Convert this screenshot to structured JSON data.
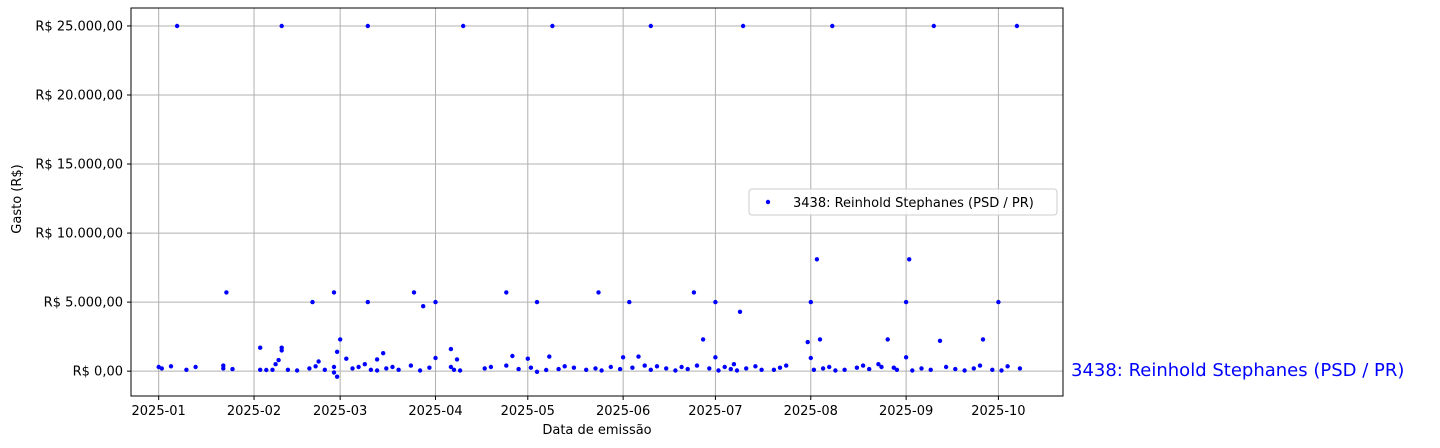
{
  "chart_data": {
    "type": "scatter",
    "title": "",
    "xlabel": "Data de emissão",
    "ylabel": "Gasto (R$)",
    "x_ticks": [
      "2025-01",
      "2025-02",
      "2025-03",
      "2025-04",
      "2025-05",
      "2025-06",
      "2025-07",
      "2025-08",
      "2025-09",
      "2025-10"
    ],
    "x_tick_dates": [
      "2025-01-01",
      "2025-02-01",
      "2025-03-01",
      "2025-04-01",
      "2025-05-01",
      "2025-06-01",
      "2025-07-01",
      "2025-08-01",
      "2025-09-01",
      "2025-10-01"
    ],
    "xlim": [
      "2024-12-23",
      "2025-10-22"
    ],
    "y_ticks": [
      "R$ 0,00",
      "R$ 5.000,00",
      "R$ 10.000,00",
      "R$ 15.000,00",
      "R$ 20.000,00",
      "R$ 25.000,00"
    ],
    "y_tick_values": [
      0,
      5000,
      10000,
      15000,
      20000,
      25000
    ],
    "ylim": [
      -1800,
      26300
    ],
    "grid": true,
    "legend_position": "center-right",
    "annotation": "3438: Reinhold Stephanes (PSD / PR)",
    "colors": {
      "series": "#0000ff",
      "annotation": "#0000ff",
      "grid": "#b0b0b0"
    },
    "series": [
      {
        "name": "3438: Reinhold Stephanes (PSD / PR)",
        "points": [
          [
            "2025-01-07",
            25000
          ],
          [
            "2025-02-10",
            25000
          ],
          [
            "2025-03-10",
            25000
          ],
          [
            "2025-04-10",
            25000
          ],
          [
            "2025-05-09",
            25000
          ],
          [
            "2025-06-10",
            25000
          ],
          [
            "2025-07-10",
            25000
          ],
          [
            "2025-08-08",
            25000
          ],
          [
            "2025-09-10",
            25000
          ],
          [
            "2025-10-07",
            25000
          ],
          [
            "2025-01-23",
            5700
          ],
          [
            "2025-02-27",
            5700
          ],
          [
            "2025-03-25",
            5700
          ],
          [
            "2025-04-24",
            5700
          ],
          [
            "2025-05-24",
            5700
          ],
          [
            "2025-06-24",
            5700
          ],
          [
            "2025-02-20",
            5000
          ],
          [
            "2025-03-10",
            5000
          ],
          [
            "2025-04-01",
            5000
          ],
          [
            "2025-05-04",
            5000
          ],
          [
            "2025-06-03",
            5000
          ],
          [
            "2025-07-01",
            5000
          ],
          [
            "2025-08-01",
            5000
          ],
          [
            "2025-09-01",
            5000
          ],
          [
            "2025-10-01",
            5000
          ],
          [
            "2025-03-28",
            4700
          ],
          [
            "2025-07-09",
            4300
          ],
          [
            "2025-08-03",
            8100
          ],
          [
            "2025-09-02",
            8100
          ],
          [
            "2025-08-04",
            2300
          ],
          [
            "2025-08-26",
            2300
          ],
          [
            "2025-09-12",
            2200
          ],
          [
            "2025-09-26",
            2300
          ],
          [
            "2025-06-27",
            2300
          ],
          [
            "2025-03-01",
            2300
          ],
          [
            "2025-07-31",
            2100
          ],
          [
            "2025-02-03",
            1700
          ],
          [
            "2025-02-10",
            1700
          ],
          [
            "2025-02-10",
            1500
          ],
          [
            "2025-02-28",
            1400
          ],
          [
            "2025-03-15",
            1300
          ],
          [
            "2025-04-06",
            1600
          ],
          [
            "2025-04-26",
            1100
          ],
          [
            "2025-06-06",
            1050
          ],
          [
            "2025-05-08",
            1050
          ],
          [
            "2025-07-01",
            1000
          ],
          [
            "2025-08-01",
            950
          ],
          [
            "2025-09-01",
            1000
          ],
          [
            "2025-06-01",
            1000
          ],
          [
            "2025-04-01",
            950
          ],
          [
            "2025-05-01",
            900
          ],
          [
            "2025-03-03",
            900
          ],
          [
            "2025-02-09",
            800
          ],
          [
            "2025-02-22",
            700
          ],
          [
            "2025-03-13",
            850
          ],
          [
            "2025-04-08",
            850
          ],
          [
            "2025-07-07",
            500
          ],
          [
            "2025-08-18",
            400
          ],
          [
            "2025-08-23",
            500
          ],
          [
            "2025-01-01",
            300
          ],
          [
            "2025-01-02",
            200
          ],
          [
            "2025-01-05",
            350
          ],
          [
            "2025-01-13",
            300
          ],
          [
            "2025-01-22",
            400
          ],
          [
            "2025-01-22",
            200
          ],
          [
            "2025-01-25",
            150
          ],
          [
            "2025-02-03",
            100
          ],
          [
            "2025-02-05",
            80
          ],
          [
            "2025-02-07",
            100
          ],
          [
            "2025-02-08",
            500
          ],
          [
            "2025-02-12",
            100
          ],
          [
            "2025-02-15",
            50
          ],
          [
            "2025-02-19",
            200
          ],
          [
            "2025-02-21",
            350
          ],
          [
            "2025-02-24",
            100
          ],
          [
            "2025-02-27",
            300
          ],
          [
            "2025-02-27",
            -100
          ],
          [
            "2025-02-28",
            -400
          ],
          [
            "2025-03-05",
            200
          ],
          [
            "2025-03-07",
            300
          ],
          [
            "2025-03-09",
            500
          ],
          [
            "2025-03-11",
            100
          ],
          [
            "2025-03-13",
            50
          ],
          [
            "2025-03-16",
            200
          ],
          [
            "2025-03-18",
            300
          ],
          [
            "2025-03-20",
            100
          ],
          [
            "2025-03-24",
            400
          ],
          [
            "2025-03-27",
            50
          ],
          [
            "2025-03-30",
            250
          ],
          [
            "2025-04-06",
            300
          ],
          [
            "2025-04-07",
            100
          ],
          [
            "2025-04-09",
            50
          ],
          [
            "2025-04-17",
            200
          ],
          [
            "2025-04-19",
            300
          ],
          [
            "2025-04-24",
            400
          ],
          [
            "2025-04-28",
            150
          ],
          [
            "2025-05-02",
            250
          ],
          [
            "2025-05-04",
            -50
          ],
          [
            "2025-05-07",
            80
          ],
          [
            "2025-05-11",
            150
          ],
          [
            "2025-05-13",
            350
          ],
          [
            "2025-05-16",
            250
          ],
          [
            "2025-05-20",
            100
          ],
          [
            "2025-05-23",
            200
          ],
          [
            "2025-05-25",
            50
          ],
          [
            "2025-05-28",
            300
          ],
          [
            "2025-05-31",
            150
          ],
          [
            "2025-06-04",
            250
          ],
          [
            "2025-06-08",
            400
          ],
          [
            "2025-06-10",
            100
          ],
          [
            "2025-06-12",
            350
          ],
          [
            "2025-06-15",
            200
          ],
          [
            "2025-06-18",
            50
          ],
          [
            "2025-06-20",
            300
          ],
          [
            "2025-06-22",
            150
          ],
          [
            "2025-06-25",
            400
          ],
          [
            "2025-06-29",
            200
          ],
          [
            "2025-07-02",
            50
          ],
          [
            "2025-07-04",
            300
          ],
          [
            "2025-07-06",
            150
          ],
          [
            "2025-07-08",
            50
          ],
          [
            "2025-07-11",
            200
          ],
          [
            "2025-07-14",
            350
          ],
          [
            "2025-07-16",
            100
          ],
          [
            "2025-07-22",
            250
          ],
          [
            "2025-07-24",
            400
          ],
          [
            "2025-08-02",
            100
          ],
          [
            "2025-08-05",
            200
          ],
          [
            "2025-08-07",
            300
          ],
          [
            "2025-08-09",
            50
          ],
          [
            "2025-08-12",
            100
          ],
          [
            "2025-08-16",
            250
          ],
          [
            "2025-08-20",
            150
          ],
          [
            "2025-08-24",
            300
          ],
          [
            "2025-08-29",
            100
          ],
          [
            "2025-09-03",
            50
          ],
          [
            "2025-09-06",
            200
          ],
          [
            "2025-09-09",
            100
          ],
          [
            "2025-09-14",
            300
          ],
          [
            "2025-09-17",
            150
          ],
          [
            "2025-09-20",
            50
          ],
          [
            "2025-09-23",
            200
          ],
          [
            "2025-09-29",
            100
          ],
          [
            "2025-10-02",
            50
          ],
          [
            "2025-10-04",
            350
          ],
          [
            "2025-10-08",
            200
          ],
          [
            "2025-09-25",
            400
          ],
          [
            "2025-01-10",
            100
          ],
          [
            "2025-08-28",
            250
          ],
          [
            "2025-07-20",
            100
          ]
        ]
      }
    ]
  }
}
